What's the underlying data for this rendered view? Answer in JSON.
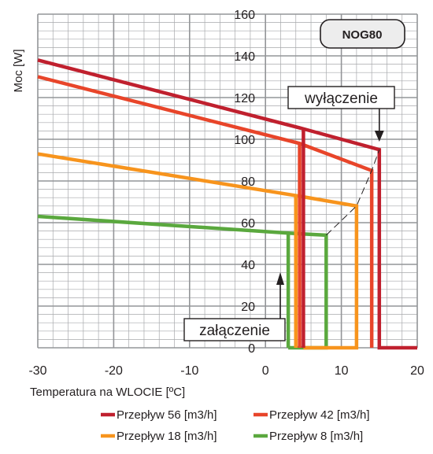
{
  "chart_data": {
    "type": "line",
    "ylabel": "Moc [W]",
    "xlabel": "Temperatura na WLOCIE  [ºC]",
    "badge": "NOG80",
    "xlim": [
      -30,
      20
    ],
    "ylim": [
      0,
      160
    ],
    "x_ticks": [
      -30,
      -20,
      -10,
      0,
      10,
      20
    ],
    "y_ticks": [
      0,
      20,
      40,
      60,
      80,
      100,
      120,
      140,
      160
    ],
    "x_tick_labels": [
      "-30",
      "-20",
      "-10",
      "0",
      "10",
      "20"
    ],
    "y_tick_labels": [
      "0",
      "20",
      "40",
      "60",
      "80",
      "100",
      "120",
      "140",
      "160"
    ],
    "grid": true,
    "legend_position": "bottom",
    "annotations": [
      {
        "text": "wyłączenie",
        "points_to": {
          "x": 15,
          "y": 95
        }
      },
      {
        "text": "załączenie",
        "points_to": {
          "x": 1.5,
          "y": 37
        }
      }
    ],
    "series": [
      {
        "name": "Przepływ 56 [m3/h]",
        "color": "#c0202e",
        "x": [
          -30,
          5,
          15,
          15,
          20
        ],
        "y": [
          138,
          105,
          95,
          0,
          0
        ],
        "on_drop": [
          [
            5,
            105
          ],
          [
            5,
            0
          ]
        ]
      },
      {
        "name": "Przepływ 42 [m3/h]",
        "color": "#e8452a",
        "x": [
          -30,
          4.5,
          14,
          14
        ],
        "y": [
          130,
          98,
          85,
          0
        ],
        "on_drop": [
          [
            4.5,
            98
          ],
          [
            4.5,
            0
          ]
        ]
      },
      {
        "name": "Przepływ 18 [m3/h]",
        "color": "#f7941d",
        "x": [
          -30,
          4,
          12,
          12,
          5
        ],
        "y": [
          93,
          73,
          68,
          0,
          0
        ],
        "on_drop": [
          [
            4,
            73
          ],
          [
            4,
            0
          ]
        ]
      },
      {
        "name": "Przepływ 8 [m3/h]",
        "color": "#5aa83e",
        "x": [
          -30,
          3,
          8,
          8,
          3
        ],
        "y": [
          63,
          55,
          54,
          0,
          0
        ],
        "on_drop": [
          [
            3,
            55
          ],
          [
            3,
            0
          ]
        ]
      }
    ]
  }
}
